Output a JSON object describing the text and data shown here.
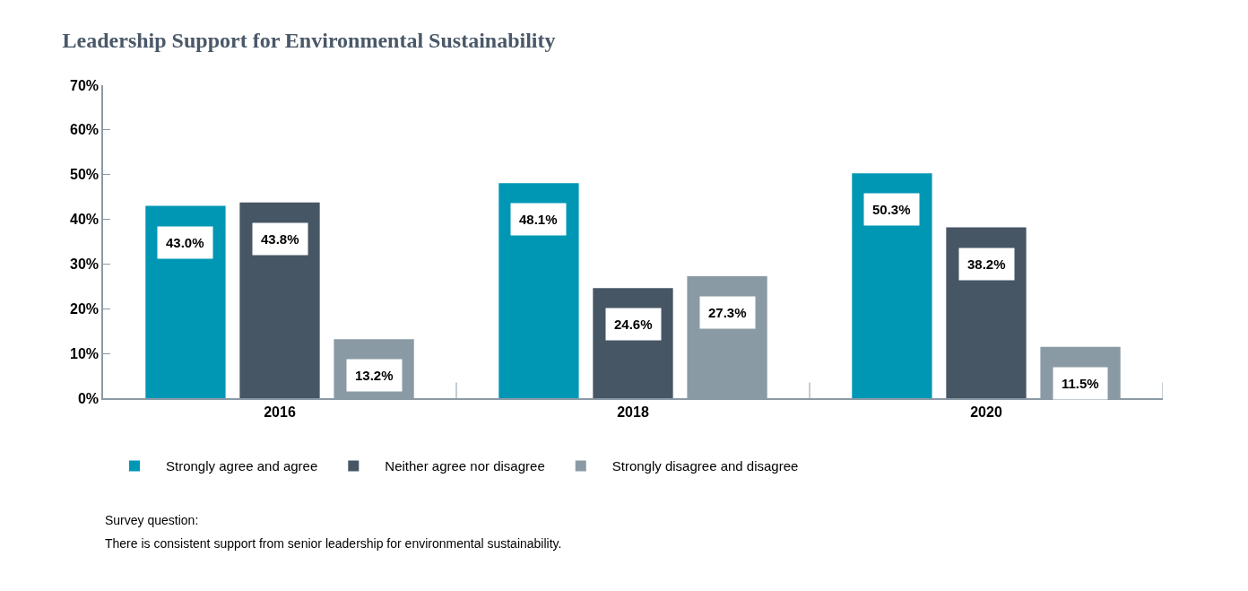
{
  "chart_data": {
    "type": "bar",
    "title": "Leadership Support for Environmental Sustainability",
    "categories": [
      "2016",
      "2018",
      "2020"
    ],
    "series": [
      {
        "name": "Strongly agree and agree",
        "color": "#0097b5",
        "values": [
          43.0,
          48.1,
          50.3
        ],
        "value_labels": [
          "43.0%",
          "48.1%",
          "50.3%"
        ]
      },
      {
        "name": "Neither agree nor disagree",
        "color": "#475665",
        "values": [
          43.8,
          24.6,
          38.2
        ],
        "value_labels": [
          "43.8%",
          "24.6%",
          "38.2%"
        ]
      },
      {
        "name": "Strongly disagree and disagree",
        "color": "#8a9aa5",
        "values": [
          13.2,
          27.3,
          11.5
        ],
        "value_labels": [
          "13.2%",
          "27.3%",
          "11.5%"
        ]
      }
    ],
    "ylim": [
      0,
      70
    ],
    "yticks": [
      {
        "value": 0,
        "label": "0%"
      },
      {
        "value": 10,
        "label": "10%"
      },
      {
        "value": 20,
        "label": "20%"
      },
      {
        "value": 30,
        "label": "30%"
      },
      {
        "value": 40,
        "label": "40%"
      },
      {
        "value": 50,
        "label": "50%"
      },
      {
        "value": 60,
        "label": "60%"
      },
      {
        "value": 70,
        "label": "70%"
      }
    ],
    "legend": "bottom",
    "annotations": [
      "Survey question:",
      "There is consistent support from senior leadership for environmental sustainability."
    ]
  }
}
